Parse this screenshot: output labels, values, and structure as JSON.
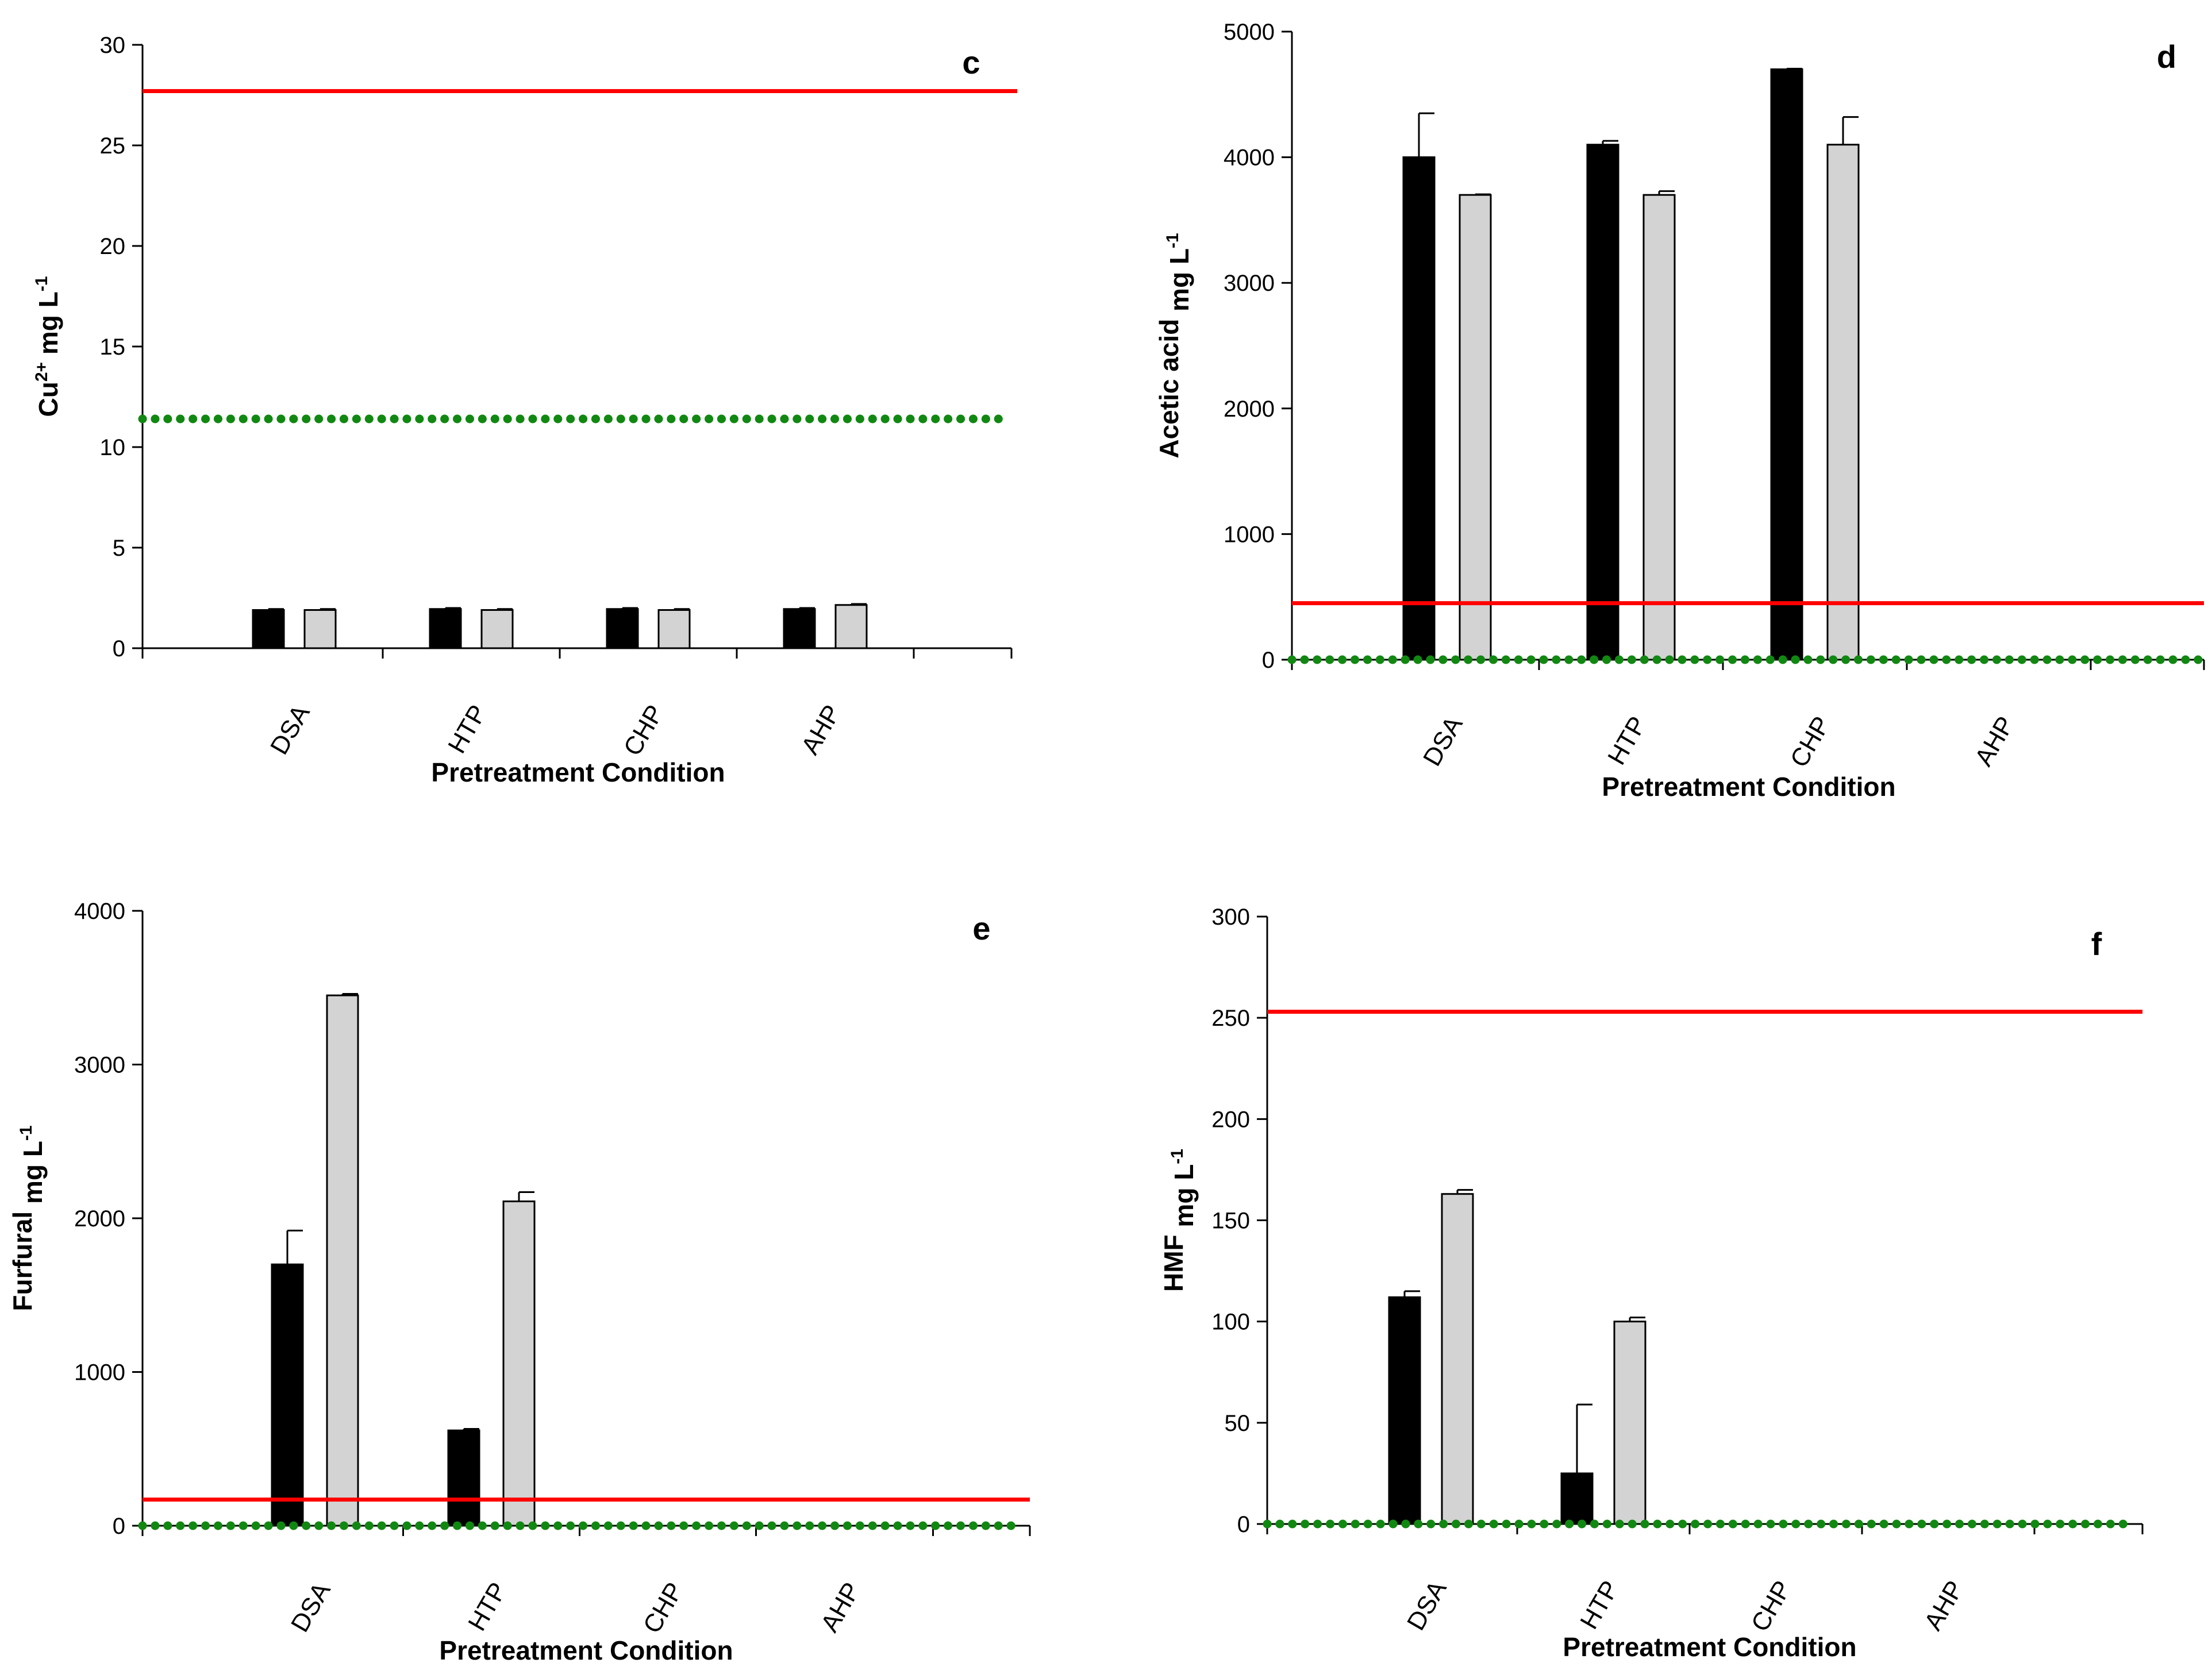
{
  "figure": {
    "colors": {
      "bar_dark": "#000000",
      "bar_light": "#d3d3d3",
      "red_line": "#ff0000",
      "green_line": "#118811"
    }
  },
  "chart_data": [
    {
      "type": "bar",
      "panel_label": "c",
      "categories": [
        "DSA",
        "HTP",
        "CHP",
        "AHP"
      ],
      "series": [
        {
          "values": [
            1.9,
            1.95,
            1.95,
            1.95
          ],
          "errors": [
            0.05,
            0.05,
            0.05,
            0.05
          ]
        },
        {
          "values": [
            1.9,
            1.9,
            1.9,
            2.15
          ],
          "errors": [
            0.05,
            0.05,
            0.05,
            0.05
          ]
        }
      ],
      "ylabel_main": "Cu",
      "ylabel_sup": "2+",
      "ylabel_unit": "mg L",
      "ylabel_unit_sup": "-1",
      "xlabel": "Pretreatment Condition",
      "ylim": [
        0,
        30
      ],
      "yticks": [
        "0",
        "5",
        "10",
        "15",
        "20",
        "25",
        "30"
      ],
      "ref_red": 27.7,
      "ref_green": 11.4
    },
    {
      "type": "bar",
      "panel_label": "d",
      "categories": [
        "DSA",
        "HTP",
        "CHP",
        "AHP"
      ],
      "series": [
        {
          "values": [
            4000,
            4100,
            4700,
            0
          ],
          "errors": [
            350,
            30,
            5,
            0
          ]
        },
        {
          "values": [
            3700,
            3700,
            4100,
            0
          ],
          "errors": [
            5,
            30,
            220,
            0
          ]
        }
      ],
      "ylabel_main": "Acetic acid",
      "ylabel_sup": "",
      "ylabel_unit": "mg L",
      "ylabel_unit_sup": "-1",
      "xlabel": "Pretreatment Condition",
      "ylim": [
        0,
        5000
      ],
      "yticks": [
        "0",
        "1000",
        "2000",
        "3000",
        "4000",
        "5000"
      ],
      "ref_red": 450,
      "ref_green": 0
    },
    {
      "type": "bar",
      "panel_label": "e",
      "categories": [
        "DSA",
        "HTP",
        "CHP",
        "AHP"
      ],
      "series": [
        {
          "values": [
            1700,
            620,
            0,
            0
          ],
          "errors": [
            220,
            10,
            0,
            0
          ]
        },
        {
          "values": [
            3450,
            2110,
            0,
            0
          ],
          "errors": [
            10,
            60,
            0,
            0
          ]
        }
      ],
      "ylabel_main": "Furfural",
      "ylabel_sup": "",
      "ylabel_unit": "mg L",
      "ylabel_unit_sup": "-1",
      "xlabel": "Pretreatment Condition",
      "ylim": [
        0,
        4000
      ],
      "yticks": [
        "0",
        "1000",
        "2000",
        "3000",
        "4000"
      ],
      "ref_red": 170,
      "ref_green": 0
    },
    {
      "type": "bar",
      "panel_label": "f",
      "categories": [
        "DSA",
        "HTP",
        "CHP",
        "AHP"
      ],
      "series": [
        {
          "values": [
            112,
            25,
            0,
            0
          ],
          "errors": [
            3,
            34,
            0,
            0
          ]
        },
        {
          "values": [
            163,
            100,
            0,
            0
          ],
          "errors": [
            2,
            2,
            0,
            0
          ]
        }
      ],
      "ylabel_main": "HMF",
      "ylabel_sup": "",
      "ylabel_unit": "mg L",
      "ylabel_unit_sup": "-1",
      "xlabel": "Pretreatment Condition",
      "ylim": [
        0,
        300
      ],
      "yticks": [
        "0",
        "50",
        "100",
        "150",
        "200",
        "250",
        "300"
      ],
      "ref_red": 253,
      "ref_green": 0
    }
  ]
}
